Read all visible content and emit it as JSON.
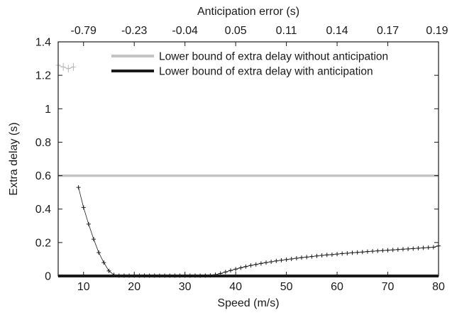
{
  "chart_data": {
    "type": "line",
    "xlabel": "Speed (m/s)",
    "ylabel": "Extra delay (s)",
    "top_xlabel": "Anticipation error (s)",
    "xlim": [
      5,
      80
    ],
    "ylim": [
      0,
      1.4
    ],
    "x_ticks": [
      10,
      20,
      30,
      40,
      50,
      60,
      70,
      80
    ],
    "y_ticks": [
      0,
      0.2,
      0.4,
      0.6,
      0.8,
      1,
      1.2,
      1.4
    ],
    "y_tick_labels": [
      "0",
      "0.2",
      "0.4",
      "0.6",
      "0.8",
      "1",
      "1.2",
      "1.4"
    ],
    "top_ticks": [
      {
        "x": 10,
        "label": "-0.79"
      },
      {
        "x": 20,
        "label": "-0.23"
      },
      {
        "x": 30,
        "label": "-0.04"
      },
      {
        "x": 40,
        "label": "0.05"
      },
      {
        "x": 50,
        "label": "0.11"
      },
      {
        "x": 60,
        "label": "0.14"
      },
      {
        "x": 70,
        "label": "0.17"
      },
      {
        "x": 80,
        "label": "0.19"
      }
    ],
    "grid": false,
    "legend_position": "top-right",
    "legend": [
      {
        "label": "Lower bound of extra delay without anticipation",
        "color": "#c4c4c4"
      },
      {
        "label": "Lower bound of extra delay with anticipation",
        "color": "#1a1a1a"
      }
    ],
    "reference_lines": [
      {
        "name": "Lower bound of extra delay without anticipation",
        "y": 0.6,
        "color": "#c4c4c4"
      },
      {
        "name": "Lower bound of extra delay with anticipation",
        "y": 0.0,
        "color": "#1a1a1a"
      }
    ],
    "early_series": {
      "color": "#b8b8b8",
      "x": [
        5,
        6,
        7,
        8
      ],
      "y": [
        1.26,
        1.25,
        1.24,
        1.25
      ]
    },
    "main_series": {
      "color": "#1a1a1a",
      "x": [
        9,
        10,
        11,
        12,
        13,
        14,
        15,
        16,
        17,
        18,
        19,
        20,
        21,
        22,
        23,
        24,
        25,
        26,
        27,
        28,
        29,
        30,
        31,
        32,
        33,
        34,
        35,
        36,
        37,
        38,
        39,
        40,
        41,
        42,
        43,
        44,
        45,
        46,
        47,
        48,
        49,
        50,
        51,
        52,
        53,
        54,
        55,
        56,
        57,
        58,
        59,
        60,
        61,
        62,
        63,
        64,
        65,
        66,
        67,
        68,
        69,
        70,
        71,
        72,
        73,
        74,
        75,
        76,
        77,
        78,
        79,
        80
      ],
      "y": [
        0.53,
        0.41,
        0.31,
        0.22,
        0.14,
        0.08,
        0.03,
        0.007,
        0.002,
        0.002,
        0.002,
        0.002,
        0.002,
        0.002,
        0.002,
        0.002,
        0.002,
        0.002,
        0.002,
        0.002,
        0.002,
        0.002,
        0.002,
        0.002,
        0.002,
        0.002,
        0.003,
        0.008,
        0.015,
        0.024,
        0.033,
        0.041,
        0.049,
        0.056,
        0.063,
        0.069,
        0.075,
        0.08,
        0.085,
        0.09,
        0.094,
        0.098,
        0.102,
        0.106,
        0.11,
        0.113,
        0.116,
        0.12,
        0.123,
        0.126,
        0.128,
        0.131,
        0.134,
        0.136,
        0.139,
        0.141,
        0.143,
        0.146,
        0.148,
        0.15,
        0.152,
        0.154,
        0.156,
        0.158,
        0.16,
        0.162,
        0.164,
        0.166,
        0.168,
        0.17,
        0.172,
        0.18
      ]
    }
  }
}
